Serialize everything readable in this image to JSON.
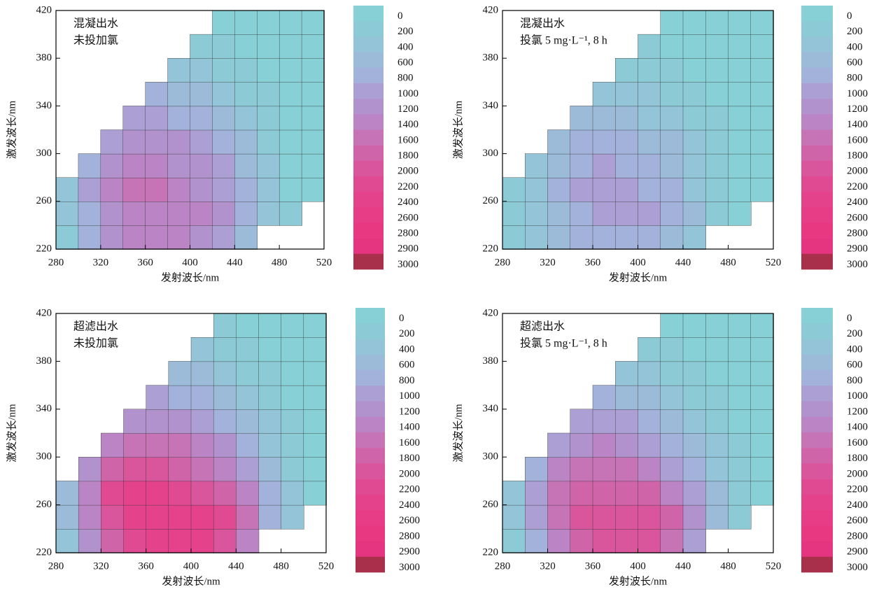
{
  "chart_data": [
    {
      "type": "contour",
      "annotations": [
        "混凝出水",
        "未投加氯"
      ],
      "x_label": "发射波长/nm",
      "y_label": "激发波长/nm",
      "xlim": [
        280,
        520
      ],
      "xticks": [
        280,
        320,
        360,
        400,
        440,
        480,
        520
      ],
      "ylim": [
        220,
        420
      ],
      "yticks": [
        220,
        260,
        300,
        340,
        380,
        420
      ],
      "x": [
        290,
        310,
        330,
        350,
        370,
        390,
        410,
        430,
        450,
        470,
        490,
        510
      ],
      "y": [
        230,
        250,
        270,
        290,
        310,
        330,
        350,
        370,
        390,
        410
      ],
      "z": [
        [
          300,
          800,
          1200,
          1400,
          1400,
          1400,
          1300,
          1000,
          700,
          null,
          null,
          null
        ],
        [
          400,
          900,
          1300,
          1500,
          1500,
          1500,
          1400,
          1200,
          900,
          500,
          200,
          null
        ],
        [
          500,
          1000,
          1400,
          1600,
          1600,
          1500,
          1300,
          1100,
          800,
          400,
          100,
          0
        ],
        [
          null,
          800,
          1200,
          1400,
          1400,
          1300,
          1200,
          1000,
          700,
          400,
          100,
          0
        ],
        [
          null,
          null,
          1000,
          1200,
          1200,
          1200,
          1000,
          800,
          600,
          300,
          100,
          0
        ],
        [
          null,
          null,
          null,
          1000,
          1000,
          900,
          800,
          600,
          400,
          200,
          100,
          0
        ],
        [
          null,
          null,
          null,
          null,
          800,
          700,
          600,
          400,
          300,
          200,
          100,
          0
        ],
        [
          null,
          null,
          null,
          null,
          null,
          500,
          400,
          300,
          200,
          100,
          0,
          0
        ],
        [
          null,
          null,
          null,
          null,
          null,
          null,
          300,
          200,
          100,
          100,
          0,
          0
        ],
        [
          null,
          null,
          null,
          null,
          null,
          null,
          null,
          100,
          100,
          0,
          0,
          0
        ]
      ],
      "colorbar": {
        "levels": [
          0,
          200,
          400,
          600,
          800,
          1000,
          1200,
          1400,
          1600,
          1800,
          2000,
          2200,
          2400,
          2600,
          2800,
          2900,
          3000
        ],
        "colors": [
          "#86d0d6",
          "#8ccbd6",
          "#93c4d8",
          "#9bbbd9",
          "#a3b2da",
          "#ab9fd4",
          "#b292cd",
          "#bb84c4",
          "#c674b6",
          "#d064a8",
          "#d9559c",
          "#e04a92",
          "#e4428b",
          "#e73c86",
          "#e93882",
          "#e63580",
          "#a8304a"
        ]
      }
    },
    {
      "type": "contour",
      "annotations": [
        "混凝出水",
        "投氯 5 mg·L⁻¹, 8 h"
      ],
      "x_label": "发射波长/nm",
      "y_label": "激发波长/nm",
      "xlim": [
        280,
        520
      ],
      "xticks": [
        280,
        320,
        360,
        400,
        440,
        480,
        520
      ],
      "ylim": [
        220,
        420
      ],
      "yticks": [
        220,
        260,
        300,
        340,
        380,
        420
      ],
      "x": [
        290,
        310,
        330,
        350,
        370,
        390,
        410,
        430,
        450,
        470,
        490,
        510
      ],
      "y": [
        230,
        250,
        270,
        290,
        310,
        330,
        350,
        370,
        390,
        410
      ],
      "z": [
        [
          200,
          500,
          700,
          800,
          900,
          900,
          900,
          700,
          500,
          null,
          null,
          null
        ],
        [
          200,
          500,
          700,
          900,
          1000,
          1000,
          1000,
          900,
          600,
          300,
          100,
          null
        ],
        [
          300,
          500,
          800,
          1000,
          1000,
          1000,
          900,
          800,
          500,
          300,
          100,
          0
        ],
        [
          null,
          400,
          700,
          900,
          1000,
          900,
          800,
          700,
          500,
          300,
          100,
          0
        ],
        [
          null,
          null,
          600,
          800,
          800,
          800,
          700,
          600,
          400,
          200,
          100,
          0
        ],
        [
          null,
          null,
          null,
          600,
          600,
          600,
          500,
          400,
          300,
          200,
          100,
          0
        ],
        [
          null,
          null,
          null,
          null,
          500,
          500,
          400,
          300,
          200,
          100,
          0,
          0
        ],
        [
          null,
          null,
          null,
          null,
          null,
          300,
          300,
          200,
          100,
          100,
          0,
          0
        ],
        [
          null,
          null,
          null,
          null,
          null,
          null,
          200,
          100,
          100,
          0,
          0,
          0
        ],
        [
          null,
          null,
          null,
          null,
          null,
          null,
          null,
          100,
          0,
          0,
          0,
          0
        ]
      ],
      "colorbar": {
        "levels": [
          0,
          200,
          400,
          600,
          800,
          1000,
          1200,
          1400,
          1600,
          1800,
          2000,
          2200,
          2400,
          2600,
          2800,
          2900,
          3000
        ],
        "colors": [
          "#86d0d6",
          "#8ccbd6",
          "#93c4d8",
          "#9bbbd9",
          "#a3b2da",
          "#ab9fd4",
          "#b292cd",
          "#bb84c4",
          "#c674b6",
          "#d064a8",
          "#d9559c",
          "#e04a92",
          "#e4428b",
          "#e73c86",
          "#e93882",
          "#e63580",
          "#a8304a"
        ]
      }
    },
    {
      "type": "contour",
      "annotations": [
        "超滤出水",
        "未投加氯"
      ],
      "x_label": "发射波长/nm",
      "y_label": "激发波长/nm",
      "xlim": [
        280,
        520
      ],
      "xticks": [
        280,
        320,
        360,
        400,
        440,
        480,
        520
      ],
      "ylim": [
        220,
        420
      ],
      "yticks": [
        220,
        260,
        300,
        340,
        380,
        420
      ],
      "x": [
        290,
        310,
        330,
        350,
        370,
        390,
        410,
        430,
        450,
        470,
        490,
        510
      ],
      "y": [
        230,
        250,
        270,
        290,
        310,
        330,
        350,
        370,
        390,
        410
      ],
      "z": [
        [
          400,
          1200,
          1800,
          2200,
          2400,
          2400,
          2400,
          2000,
          1400,
          null,
          null,
          null
        ],
        [
          600,
          1400,
          2000,
          2400,
          2400,
          2400,
          2400,
          2200,
          1600,
          800,
          400,
          null
        ],
        [
          700,
          1400,
          2200,
          2400,
          2400,
          2200,
          2000,
          1800,
          1400,
          800,
          400,
          100
        ],
        [
          null,
          1200,
          1800,
          2000,
          2000,
          1800,
          1600,
          1400,
          1000,
          600,
          300,
          100
        ],
        [
          null,
          null,
          1400,
          1600,
          1600,
          1600,
          1400,
          1200,
          800,
          500,
          200,
          100
        ],
        [
          null,
          null,
          null,
          1200,
          1300,
          1200,
          1000,
          800,
          600,
          400,
          200,
          0
        ],
        [
          null,
          null,
          null,
          null,
          1000,
          900,
          800,
          600,
          400,
          300,
          100,
          0
        ],
        [
          null,
          null,
          null,
          null,
          null,
          700,
          600,
          400,
          300,
          200,
          100,
          0
        ],
        [
          null,
          null,
          null,
          null,
          null,
          null,
          400,
          300,
          200,
          100,
          0,
          0
        ],
        [
          null,
          null,
          null,
          null,
          null,
          null,
          null,
          200,
          100,
          100,
          0,
          0
        ]
      ],
      "colorbar": {
        "levels": [
          0,
          200,
          400,
          600,
          800,
          1000,
          1200,
          1400,
          1600,
          1800,
          2000,
          2200,
          2400,
          2600,
          2800,
          2900,
          3000
        ],
        "colors": [
          "#86d0d6",
          "#8ccbd6",
          "#93c4d8",
          "#9bbbd9",
          "#a3b2da",
          "#ab9fd4",
          "#b292cd",
          "#bb84c4",
          "#c674b6",
          "#d064a8",
          "#d9559c",
          "#e04a92",
          "#e4428b",
          "#e73c86",
          "#e93882",
          "#e63580",
          "#a8304a"
        ]
      }
    },
    {
      "type": "contour",
      "annotations": [
        "超滤出水",
        "投氯 5 mg·L⁻¹, 8 h"
      ],
      "x_label": "发射波长/nm",
      "y_label": "激发波长/nm",
      "xlim": [
        280,
        520
      ],
      "xticks": [
        280,
        320,
        360,
        400,
        440,
        480,
        520
      ],
      "ylim": [
        220,
        420
      ],
      "yticks": [
        220,
        260,
        300,
        340,
        380,
        420
      ],
      "x": [
        290,
        310,
        330,
        350,
        370,
        390,
        410,
        430,
        450,
        470,
        490,
        510
      ],
      "y": [
        230,
        250,
        270,
        290,
        310,
        330,
        350,
        370,
        390,
        410
      ],
      "z": [
        [
          300,
          900,
          1400,
          1800,
          2000,
          2000,
          2000,
          1600,
          1000,
          null,
          null,
          null
        ],
        [
          400,
          1000,
          1600,
          2000,
          2000,
          2000,
          2000,
          1800,
          1200,
          600,
          300,
          null
        ],
        [
          500,
          1000,
          1600,
          1800,
          1900,
          1900,
          1800,
          1500,
          1100,
          600,
          300,
          100
        ],
        [
          null,
          900,
          1400,
          1600,
          1600,
          1600,
          1400,
          1100,
          800,
          500,
          200,
          100
        ],
        [
          null,
          null,
          1100,
          1300,
          1400,
          1300,
          1100,
          900,
          600,
          400,
          200,
          0
        ],
        [
          null,
          null,
          null,
          1000,
          1000,
          1000,
          800,
          600,
          400,
          300,
          100,
          0
        ],
        [
          null,
          null,
          null,
          null,
          800,
          700,
          600,
          400,
          300,
          200,
          100,
          0
        ],
        [
          null,
          null,
          null,
          null,
          null,
          500,
          400,
          300,
          200,
          100,
          0,
          0
        ],
        [
          null,
          null,
          null,
          null,
          null,
          null,
          300,
          200,
          100,
          100,
          0,
          0
        ],
        [
          null,
          null,
          null,
          null,
          null,
          null,
          null,
          100,
          100,
          0,
          0,
          0
        ]
      ],
      "colorbar": {
        "levels": [
          0,
          200,
          400,
          600,
          800,
          1000,
          1200,
          1400,
          1600,
          1800,
          2000,
          2200,
          2400,
          2600,
          2800,
          2900,
          3000
        ],
        "colors": [
          "#86d0d6",
          "#8ccbd6",
          "#93c4d8",
          "#9bbbd9",
          "#a3b2da",
          "#ab9fd4",
          "#b292cd",
          "#bb84c4",
          "#c674b6",
          "#d064a8",
          "#d9559c",
          "#e04a92",
          "#e4428b",
          "#e73c86",
          "#e93882",
          "#e63580",
          "#a8304a"
        ]
      }
    }
  ]
}
